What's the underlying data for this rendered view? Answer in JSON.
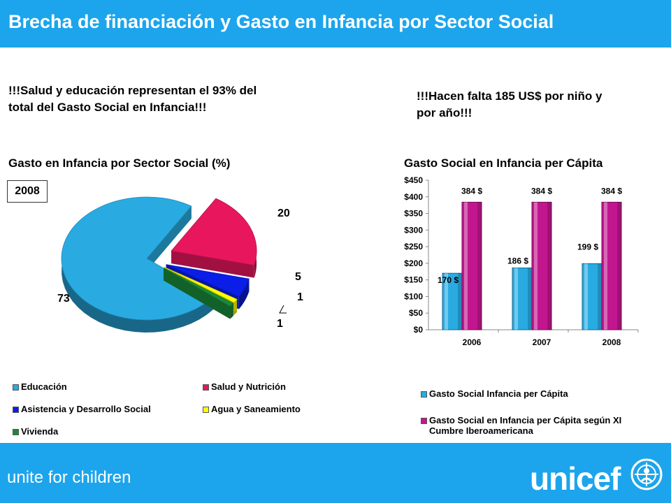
{
  "header": {
    "title": "Brecha de financiación y Gasto en Infancia por Sector Social"
  },
  "notes": {
    "left": "!!!Salud y educación representan el 93% del total del Gasto Social en Infancia!!!",
    "right": "!!!Hacen falta 185 US$ por niño y por año!!!"
  },
  "pie": {
    "title": "Gasto en Infancia por Sector Social (%)",
    "year": "2008"
  },
  "bar": {
    "title": "Gasto Social en Infancia per Cápita"
  },
  "chart_data": [
    {
      "type": "pie",
      "title": "Gasto en Infancia por Sector Social (%)",
      "annotation": "2008",
      "slices": [
        {
          "name": "Educación",
          "value": 73,
          "label": "73",
          "color": "#29abe2"
        },
        {
          "name": "Salud y Nutrición",
          "value": 20,
          "label": "20",
          "color": "#e8175d"
        },
        {
          "name": "Asistencia y Desarrollo Social",
          "value": 5,
          "label": "5",
          "color": "#0a1ee8"
        },
        {
          "name": "Agua y Saneamiento",
          "value": 1,
          "label": "1",
          "color": "#ffff00"
        },
        {
          "name": "Vivienda",
          "value": 1,
          "label": "1",
          "color": "#1a8a3a"
        }
      ],
      "legend_position": "bottom"
    },
    {
      "type": "bar",
      "title": "Gasto Social en Infancia per Cápita",
      "categories": [
        "2006",
        "2007",
        "2008"
      ],
      "series": [
        {
          "name": "Gasto Social Infancia per Cápita",
          "values": [
            170,
            186,
            199
          ],
          "labels": [
            "170 $",
            "186 $",
            "199 $"
          ],
          "color": "#29abe2"
        },
        {
          "name": "Gasto Social en Infancia per Cápita según XI Cumbre Iberoamericana",
          "values": [
            384,
            384,
            384
          ],
          "labels": [
            "384 $",
            "384 $",
            "384 $"
          ],
          "color": "#c2168f"
        }
      ],
      "ylim": [
        0,
        450
      ],
      "yticks": [
        "$0",
        "$50",
        "$100",
        "$150",
        "$200",
        "$250",
        "$300",
        "$350",
        "$400",
        "$450"
      ],
      "xlabel": "",
      "ylabel": "",
      "grid": false,
      "legend_position": "bottom"
    }
  ],
  "footer": {
    "tagline": "unite for children",
    "logo": "unicef"
  }
}
